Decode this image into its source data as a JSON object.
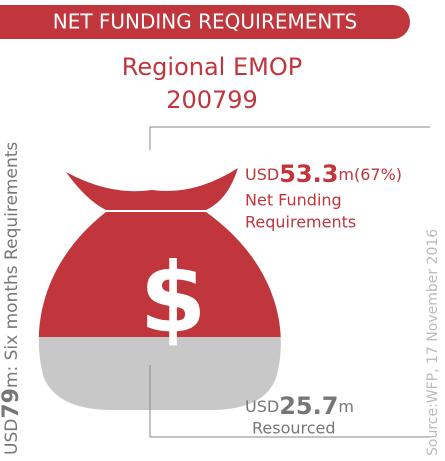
{
  "header": {
    "title": "NET FUNDING REQUIREMENTS"
  },
  "title": {
    "line1": "Regional EMOP",
    "line2": "200799"
  },
  "total": {
    "currency": "USD",
    "amount": "79",
    "text": "m: Six months Requirements"
  },
  "net": {
    "currency": "USD",
    "amount": "53.3",
    "suffix": "m(67%)",
    "line1": "Net Funding",
    "line2": "Requirements"
  },
  "resourced": {
    "currency": "USD",
    "amount": "25.7",
    "suffix": "m",
    "label": "Resourced"
  },
  "bag": {
    "symbol": "$"
  },
  "source": "Source:WFP, 17 November 2016"
}
